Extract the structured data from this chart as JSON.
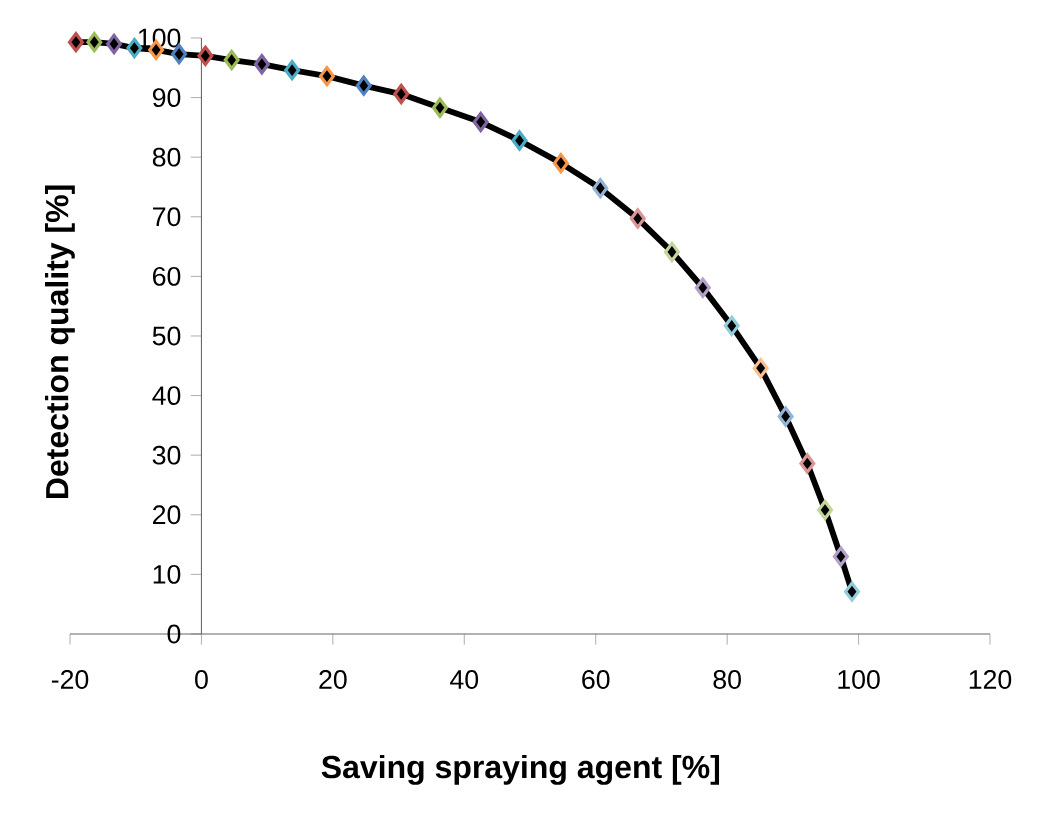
{
  "chart_data": {
    "type": "line",
    "xlabel": "Saving spraying agent [%]",
    "ylabel": "Detection quality [%]",
    "xlim": [
      -20,
      120
    ],
    "xticks": [
      -20,
      0,
      20,
      40,
      60,
      80,
      100,
      120
    ],
    "ylim": [
      0,
      100
    ],
    "yticks": [
      0,
      10,
      20,
      30,
      40,
      50,
      60,
      70,
      80,
      90,
      100
    ],
    "grid": false,
    "legend": false,
    "marker": "diamond",
    "line_style": "solid",
    "series": [
      {
        "color": "#000000",
        "x": [
          -19.1,
          -16.3,
          -13.3,
          -10.2,
          -6.9,
          -3.4,
          0.6,
          4.6,
          9.2,
          13.8,
          19.1,
          24.7,
          30.4,
          36.3,
          42.5,
          48.4,
          54.7,
          60.7,
          66.4,
          71.6,
          76.3,
          80.7,
          85.1,
          88.9,
          92.2,
          94.9,
          97.3,
          99.0
        ],
        "values": [
          99.3,
          99.3,
          99.0,
          98.3,
          98.0,
          97.3,
          97.0,
          96.3,
          95.6,
          94.6,
          93.6,
          92.0,
          90.6,
          88.3,
          85.9,
          82.8,
          79.0,
          74.8,
          69.7,
          64.1,
          58.1,
          51.7,
          44.6,
          36.5,
          28.6,
          20.8,
          13.0,
          7.1
        ],
        "colors": [
          "#c0504d",
          "#9bbb59",
          "#8064a2",
          "#4bacc6",
          "#f79646",
          "#4f81bd",
          "#c0504d",
          "#9bbb59",
          "#8064a2",
          "#4bacc6",
          "#f79646",
          "#4f81bd",
          "#c0504d",
          "#9bbb59",
          "#8064a2",
          "#4bacc6",
          "#f79646",
          "#95b3d7",
          "#d99694",
          "#c3d69b",
          "#b3a2c7",
          "#93cddd",
          "#fac090",
          "#95b3d7",
          "#d99694",
          "#c3d69b",
          "#b3a2c7",
          "#93cddd"
        ]
      }
    ]
  }
}
